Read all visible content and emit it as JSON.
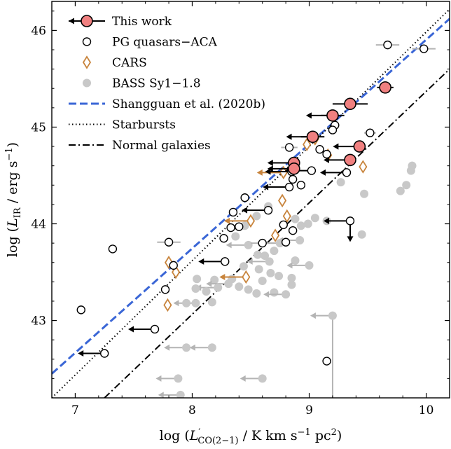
{
  "chart_data": {
    "type": "scatter",
    "xlabel": "log (L′CO(2−1) / K km s−1 pc2)",
    "ylabel": "log (LIR / erg s−1)",
    "xlabel_parts": {
      "pre": "log (",
      "sym": "L",
      "sup": "′",
      "sub": "CO(2−1)",
      "unit": " / K km s",
      "unit_sup": "−1",
      "unit2": " pc",
      "unit2_sup": "2",
      "post": ")"
    },
    "ylabel_parts": {
      "pre": "log (",
      "sym": "L",
      "sub": "IR",
      "unit": " / erg s",
      "unit_sup": "−1",
      "post": ")"
    },
    "xlim": [
      6.8,
      10.2
    ],
    "ylim": [
      42.2,
      46.3
    ],
    "xticks": [
      7,
      8,
      9,
      10
    ],
    "yticks": [
      43,
      44,
      45,
      46
    ],
    "grid": false,
    "legend_position": "top-left",
    "legend": [
      {
        "label": "This work",
        "kind": "red-circle"
      },
      {
        "label": "PG quasars−ACA",
        "kind": "open-circle"
      },
      {
        "label": "CARS",
        "kind": "diamond"
      },
      {
        "label": "BASS Sy1−1.8",
        "kind": "gray-circle"
      },
      {
        "label": "Shangguan et al. (2020b)",
        "kind": "dashed-line"
      },
      {
        "label": "Starbursts",
        "kind": "dotted-line"
      },
      {
        "label": "Normal galaxies",
        "kind": "dashdot-line"
      }
    ],
    "lines": [
      {
        "name": "Shangguan et al. (2020b)",
        "x": [
          6.8,
          10.2
        ],
        "y": [
          42.45,
          46.12
        ],
        "color": "#3a66d6",
        "style": "dashed"
      },
      {
        "name": "Starbursts",
        "x": [
          6.8,
          10.2
        ],
        "y": [
          42.2,
          46.22
        ],
        "color": "#000000",
        "style": "dotted"
      },
      {
        "name": "Normal galaxies",
        "x": [
          7.25,
          10.2
        ],
        "y": [
          42.2,
          45.6
        ],
        "color": "#000000",
        "style": "dashdot"
      }
    ],
    "series": [
      {
        "name": "This work",
        "color": "#f08080",
        "points": [
          {
            "x": 9.65,
            "y": 45.41,
            "xerr": 0.07
          },
          {
            "x": 9.35,
            "y": 45.24,
            "xerr": 0.15
          },
          {
            "x": 9.2,
            "y": 45.12,
            "xerr": 0.1,
            "upper_x": true
          },
          {
            "x": 9.03,
            "y": 44.9,
            "xerr": 0.1,
            "upper_x": true
          },
          {
            "x": 9.43,
            "y": 44.8,
            "upper_x": true
          },
          {
            "x": 9.35,
            "y": 44.66,
            "upper_x": true
          },
          {
            "x": 8.87,
            "y": 44.63,
            "upper_x": true
          },
          {
            "x": 8.87,
            "y": 44.57,
            "upper_x": true
          }
        ]
      },
      {
        "name": "PG quasars−ACA",
        "color": "#000000",
        "points": [
          {
            "x": 9.67,
            "y": 45.85,
            "xerr": 0.1
          },
          {
            "x": 9.98,
            "y": 45.81,
            "xerr": 0.1
          },
          {
            "x": 9.52,
            "y": 44.94,
            "xerr": 0.05
          },
          {
            "x": 9.22,
            "y": 45.02
          },
          {
            "x": 9.2,
            "y": 44.97
          },
          {
            "x": 8.83,
            "y": 44.79,
            "xerr": 0.07
          },
          {
            "x": 9.09,
            "y": 44.77
          },
          {
            "x": 9.15,
            "y": 44.72
          },
          {
            "x": 9.32,
            "y": 44.53,
            "upper_x": true
          },
          {
            "x": 9.02,
            "y": 44.55,
            "upper_x": true
          },
          {
            "x": 8.85,
            "y": 44.54,
            "upper_x": true
          },
          {
            "x": 8.86,
            "y": 44.46
          },
          {
            "x": 8.93,
            "y": 44.4
          },
          {
            "x": 8.83,
            "y": 44.38,
            "upper_x": true
          },
          {
            "x": 8.45,
            "y": 44.27
          },
          {
            "x": 8.65,
            "y": 44.14,
            "upper_x": true
          },
          {
            "x": 8.35,
            "y": 44.12
          },
          {
            "x": 8.4,
            "y": 43.97
          },
          {
            "x": 8.33,
            "y": 43.96
          },
          {
            "x": 8.27,
            "y": 43.85
          },
          {
            "x": 8.78,
            "y": 43.99
          },
          {
            "x": 8.86,
            "y": 43.93
          },
          {
            "x": 9.35,
            "y": 44.03,
            "upper_x": true,
            "upper_y": true
          },
          {
            "x": 8.8,
            "y": 43.81
          },
          {
            "x": 8.6,
            "y": 43.8,
            "xerr": 0.1
          },
          {
            "x": 7.8,
            "y": 43.81,
            "xerr": 0.1
          },
          {
            "x": 7.32,
            "y": 43.74
          },
          {
            "x": 7.84,
            "y": 43.57
          },
          {
            "x": 8.28,
            "y": 43.61,
            "upper_x": true
          },
          {
            "x": 7.77,
            "y": 43.32
          },
          {
            "x": 7.05,
            "y": 43.11
          },
          {
            "x": 7.68,
            "y": 42.91,
            "upper_x": true
          },
          {
            "x": 7.25,
            "y": 42.66,
            "upper_x": true
          },
          {
            "x": 9.15,
            "y": 42.58
          }
        ]
      },
      {
        "name": "CARS",
        "color": "#c8843c",
        "points": [
          {
            "x": 9.05,
            "y": 44.88
          },
          {
            "x": 8.98,
            "y": 44.82
          },
          {
            "x": 9.16,
            "y": 44.71
          },
          {
            "x": 9.46,
            "y": 44.59
          },
          {
            "x": 8.78,
            "y": 44.53,
            "upper_x": true
          },
          {
            "x": 8.77,
            "y": 44.24
          },
          {
            "x": 8.81,
            "y": 44.08
          },
          {
            "x": 8.5,
            "y": 44.03,
            "upper_x": true
          },
          {
            "x": 8.71,
            "y": 43.88
          },
          {
            "x": 8.46,
            "y": 43.45,
            "upper_x": true
          },
          {
            "x": 7.8,
            "y": 43.6
          },
          {
            "x": 7.86,
            "y": 43.5
          },
          {
            "x": 7.79,
            "y": 43.16
          }
        ]
      },
      {
        "name": "BASS Sy1−1.8",
        "color": "#c8c8c8",
        "points": [
          {
            "x": 9.88,
            "y": 44.6
          },
          {
            "x": 9.87,
            "y": 44.55
          },
          {
            "x": 9.83,
            "y": 44.4
          },
          {
            "x": 9.78,
            "y": 44.34
          },
          {
            "x": 9.47,
            "y": 44.31
          },
          {
            "x": 9.27,
            "y": 44.43
          },
          {
            "x": 9.45,
            "y": 43.89
          },
          {
            "x": 9.15,
            "y": 44.03
          },
          {
            "x": 9.05,
            "y": 44.06
          },
          {
            "x": 8.99,
            "y": 44.0
          },
          {
            "x": 8.93,
            "y": 43.98
          },
          {
            "x": 8.88,
            "y": 44.05
          },
          {
            "x": 8.65,
            "y": 44.18
          },
          {
            "x": 8.55,
            "y": 44.08
          },
          {
            "x": 8.45,
            "y": 43.98
          },
          {
            "x": 8.37,
            "y": 43.87
          },
          {
            "x": 8.92,
            "y": 43.83,
            "upper_x": true
          },
          {
            "x": 8.75,
            "y": 43.8,
            "upper_x": true
          },
          {
            "x": 8.48,
            "y": 43.78,
            "upper_x": true
          },
          {
            "x": 8.7,
            "y": 43.72
          },
          {
            "x": 8.62,
            "y": 43.67
          },
          {
            "x": 8.56,
            "y": 43.68
          },
          {
            "x": 8.88,
            "y": 43.62
          },
          {
            "x": 8.66,
            "y": 43.61,
            "upper_x": true
          },
          {
            "x": 9.0,
            "y": 43.57,
            "upper_x": true
          },
          {
            "x": 8.44,
            "y": 43.56
          },
          {
            "x": 8.57,
            "y": 43.53
          },
          {
            "x": 8.67,
            "y": 43.49
          },
          {
            "x": 8.74,
            "y": 43.46
          },
          {
            "x": 8.85,
            "y": 43.44
          },
          {
            "x": 8.34,
            "y": 43.43
          },
          {
            "x": 8.6,
            "y": 43.41
          },
          {
            "x": 8.19,
            "y": 43.42
          },
          {
            "x": 8.04,
            "y": 43.43
          },
          {
            "x": 8.31,
            "y": 43.38,
            "upper_x": true
          },
          {
            "x": 8.4,
            "y": 43.35
          },
          {
            "x": 8.48,
            "y": 43.32
          },
          {
            "x": 8.22,
            "y": 43.34,
            "upper_x": true
          },
          {
            "x": 8.03,
            "y": 43.33
          },
          {
            "x": 8.12,
            "y": 43.3
          },
          {
            "x": 8.7,
            "y": 43.29
          },
          {
            "x": 8.55,
            "y": 43.28
          },
          {
            "x": 8.8,
            "y": 43.27,
            "upper_x": true
          },
          {
            "x": 8.85,
            "y": 43.37
          },
          {
            "x": 8.17,
            "y": 43.19
          },
          {
            "x": 8.03,
            "y": 43.18,
            "upper_x": true
          },
          {
            "x": 7.95,
            "y": 43.18
          },
          {
            "x": 9.2,
            "y": 43.05,
            "upper_x": true,
            "upper_y": true
          },
          {
            "x": 7.95,
            "y": 42.72,
            "upper_x": true
          },
          {
            "x": 8.17,
            "y": 42.72,
            "upper_x": true
          },
          {
            "x": 7.88,
            "y": 42.4,
            "upper_x": true
          },
          {
            "x": 8.6,
            "y": 42.4,
            "upper_x": true
          },
          {
            "x": 7.9,
            "y": 42.23,
            "upper_x": true
          }
        ]
      }
    ]
  }
}
